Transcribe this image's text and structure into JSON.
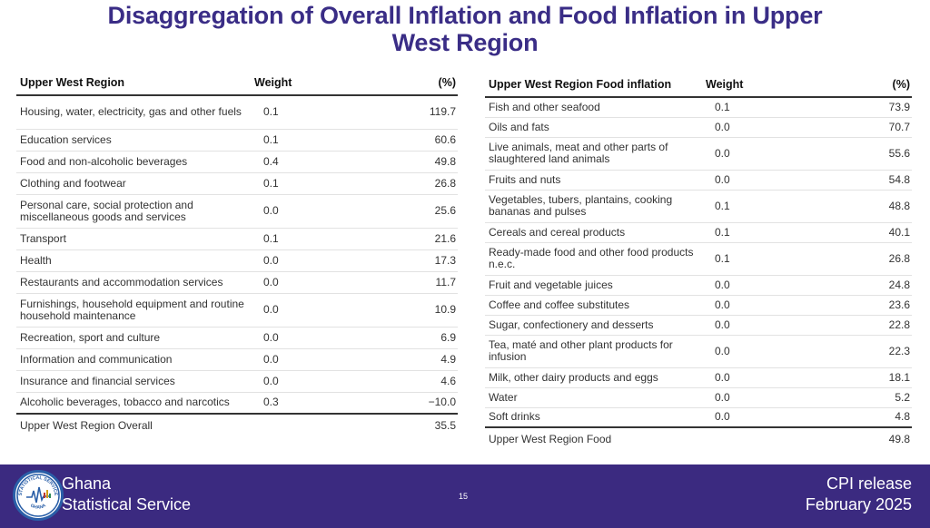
{
  "title": {
    "line1": "Disaggregation of Overall Inflation and Food Inflation in Upper",
    "line2": "West Region"
  },
  "left_table": {
    "headers": {
      "category": "Upper West Region",
      "weight": "Weight",
      "pct": "(%)"
    },
    "rows": [
      {
        "category": "Housing, water, electricity, gas and other fuels",
        "weight": "0.1",
        "pct": "119.7"
      },
      {
        "category": "Education services",
        "weight": "0.1",
        "pct": "60.6"
      },
      {
        "category": "Food and non-alcoholic beverages",
        "weight": "0.4",
        "pct": "49.8"
      },
      {
        "category": "Clothing and footwear",
        "weight": "0.1",
        "pct": "26.8"
      },
      {
        "category": "Personal care, social protection and miscellaneous goods and services",
        "weight": "0.0",
        "pct": "25.6"
      },
      {
        "category": "Transport",
        "weight": "0.1",
        "pct": "21.6"
      },
      {
        "category": "Health",
        "weight": "0.0",
        "pct": "17.3"
      },
      {
        "category": "Restaurants and accommodation services",
        "weight": "0.0",
        "pct": "11.7"
      },
      {
        "category": "Furnishings, household equipment and routine household maintenance",
        "weight": "0.0",
        "pct": "10.9"
      },
      {
        "category": "Recreation, sport and culture",
        "weight": "0.0",
        "pct": "6.9"
      },
      {
        "category": "Information and communication",
        "weight": "0.0",
        "pct": "4.9"
      },
      {
        "category": "Insurance and financial services",
        "weight": "0.0",
        "pct": "4.6"
      },
      {
        "category": "Alcoholic beverages, tobacco and narcotics",
        "weight": "0.3",
        "pct": "−10.0"
      }
    ],
    "total": {
      "category": "Upper West Region Overall",
      "pct": "35.5"
    }
  },
  "right_table": {
    "headers": {
      "category": "Upper West Region Food inflation",
      "weight": "Weight",
      "pct": "(%)"
    },
    "rows": [
      {
        "category": "Fish and other seafood",
        "weight": "0.1",
        "pct": "73.9"
      },
      {
        "category": "Oils and fats",
        "weight": "0.0",
        "pct": "70.7"
      },
      {
        "category": "Live animals, meat and other parts of slaughtered land animals",
        "weight": "0.0",
        "pct": "55.6"
      },
      {
        "category": "Fruits and nuts",
        "weight": "0.0",
        "pct": "54.8"
      },
      {
        "category": "Vegetables, tubers, plantains, cooking bananas and pulses",
        "weight": "0.1",
        "pct": "48.8"
      },
      {
        "category": "Cereals and cereal products",
        "weight": "0.1",
        "pct": "40.1"
      },
      {
        "category": "Ready-made food and other food products n.e.c.",
        "weight": "0.1",
        "pct": "26.8"
      },
      {
        "category": "Fruit and vegetable juices",
        "weight": "0.0",
        "pct": "24.8"
      },
      {
        "category": "Coffee and coffee substitutes",
        "weight": "0.0",
        "pct": "23.6"
      },
      {
        "category": "Sugar, confectionery and desserts",
        "weight": "0.0",
        "pct": "22.8"
      },
      {
        "category": "Tea, maté and other plant products for infusion",
        "weight": "0.0",
        "pct": "22.3"
      },
      {
        "category": "Milk, other dairy products and eggs",
        "weight": "0.0",
        "pct": "18.1"
      },
      {
        "category": "Water",
        "weight": "0.0",
        "pct": "5.2"
      },
      {
        "category": "Soft drinks",
        "weight": "0.0",
        "pct": "4.8"
      }
    ],
    "total": {
      "category": "Upper West Region Food",
      "pct": "49.8"
    }
  },
  "footer": {
    "org_line1": "Ghana",
    "org_line2": "Statistical Service",
    "page_number": "15",
    "release_line1": "CPI release",
    "release_line2": "February  2025",
    "logo_text_top": "STATISTICAL SERVICE",
    "logo_text_bottom": "GHANA"
  },
  "colors": {
    "title": "#3a2d86",
    "footer_bg": "#3b2a80",
    "logo_ring": "#2a5fa8"
  }
}
